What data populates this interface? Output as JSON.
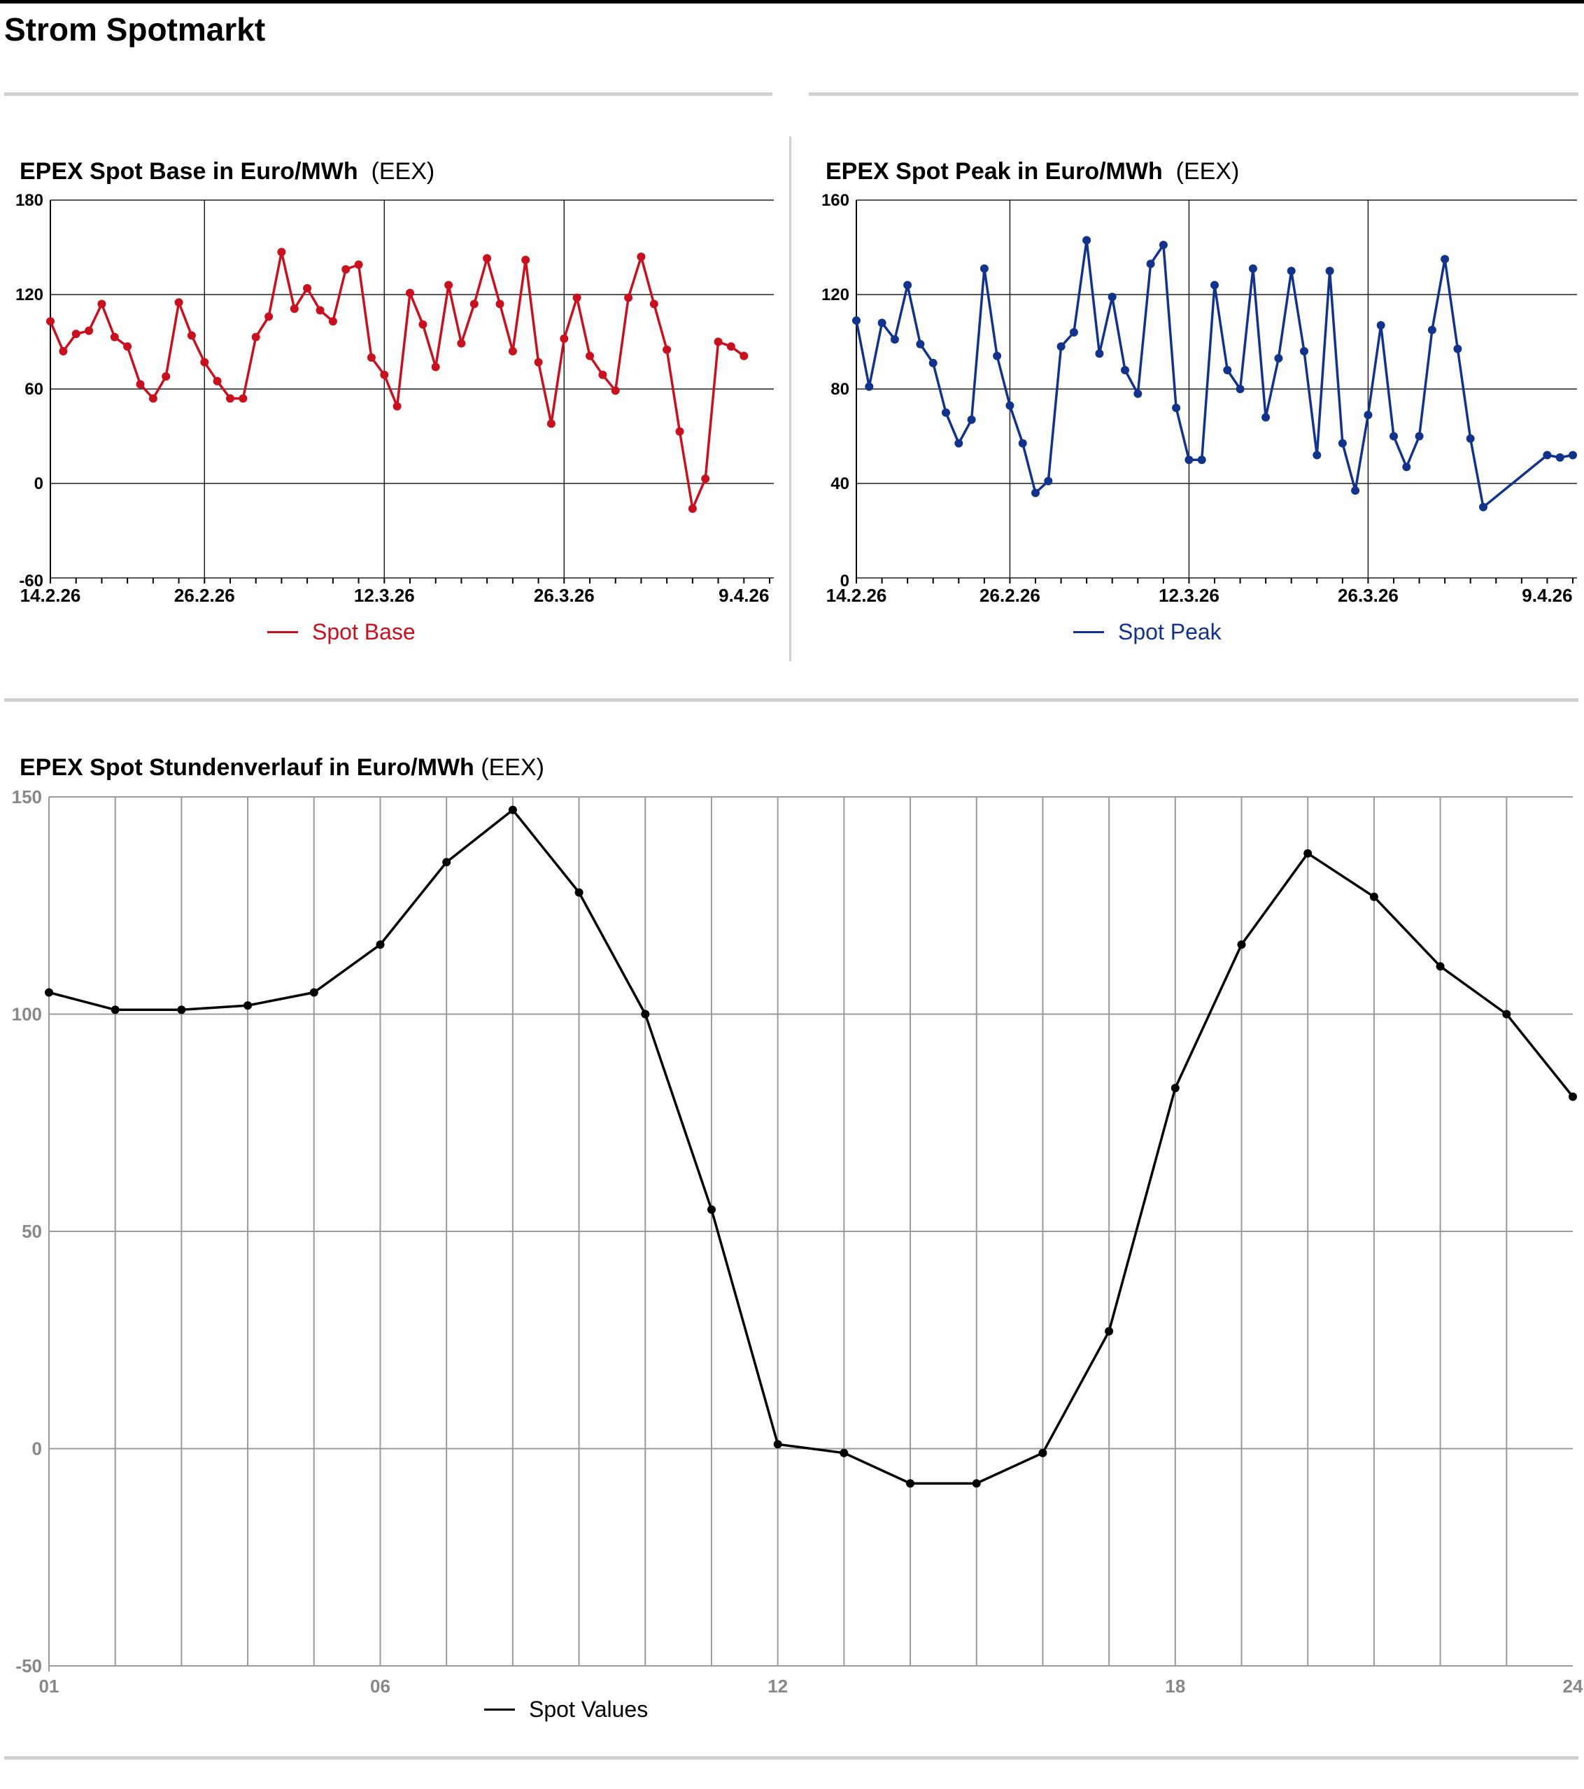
{
  "page": {
    "title": "Strom Spotmarkt"
  },
  "charts": {
    "base": {
      "title": "EPEX Spot Base in Euro/MWh",
      "source": "(EEX)",
      "legend": "Spot Base",
      "color": "#c8101e"
    },
    "peak": {
      "title": "EPEX Spot Peak in Euro/MWh",
      "source": "(EEX)",
      "legend": "Spot Peak",
      "color": "#12338c"
    },
    "hourly": {
      "title": "EPEX Spot Stundenverlauf in Euro/MWh",
      "source": "(EEX)",
      "legend": "Spot Values",
      "color": "#000000"
    }
  },
  "chart_data": [
    {
      "type": "line",
      "title": "EPEX Spot Base in Euro/MWh",
      "subtitle": "(EEX)",
      "ylim": [
        -60,
        180
      ],
      "yticks": [
        -60,
        0,
        60,
        120,
        180
      ],
      "xlim": [
        "14.2.26",
        "11.4.26"
      ],
      "xticks": [
        "14.2.26",
        "26.2.26",
        "12.3.26",
        "26.3.26",
        "9.4.26"
      ],
      "grid": true,
      "legend_position": "bottom-center",
      "series": [
        {
          "name": "Spot Base",
          "x": [
            "14.2.26",
            "15.2.26",
            "16.2.26",
            "17.2.26",
            "18.2.26",
            "19.2.26",
            "20.2.26",
            "21.2.26",
            "22.2.26",
            "23.2.26",
            "24.2.26",
            "25.2.26",
            "26.2.26",
            "27.2.26",
            "28.2.26",
            "1.3.26",
            "2.3.26",
            "3.3.26",
            "4.3.26",
            "5.3.26",
            "6.3.26",
            "7.3.26",
            "8.3.26",
            "9.3.26",
            "10.3.26",
            "11.3.26",
            "12.3.26",
            "13.3.26",
            "14.3.26",
            "15.3.26",
            "16.3.26",
            "17.3.26",
            "18.3.26",
            "19.3.26",
            "20.3.26",
            "21.3.26",
            "22.3.26",
            "23.3.26",
            "24.3.26",
            "25.3.26",
            "26.3.26",
            "27.3.26",
            "28.3.26",
            "29.3.26",
            "30.3.26",
            "31.3.26",
            "1.4.26",
            "2.4.26",
            "3.4.26",
            "4.4.26",
            "5.4.26",
            "6.4.26",
            "7.4.26",
            "8.4.26",
            "9.4.26",
            "10.4.26",
            "11.4.26"
          ],
          "values": [
            103,
            84,
            95,
            97,
            114,
            93,
            87,
            63,
            54,
            68,
            115,
            94,
            77,
            65,
            54,
            54,
            93,
            106,
            147,
            111,
            124,
            110,
            103,
            136,
            139,
            80,
            69,
            49,
            121,
            101,
            74,
            126,
            89,
            114,
            143,
            114,
            84,
            142,
            77,
            38,
            92,
            118,
            81,
            69,
            59,
            118,
            144,
            114,
            85,
            33,
            -16,
            3,
            90,
            87,
            81,
            null,
            null
          ]
        }
      ]
    },
    {
      "type": "line",
      "title": "EPEX Spot Peak in Euro/MWh",
      "subtitle": "(EEX)",
      "ylim": [
        0,
        160
      ],
      "yticks": [
        0,
        40,
        80,
        120,
        160
      ],
      "xlim": [
        "14.2.26",
        "11.4.26"
      ],
      "xticks": [
        "14.2.26",
        "26.2.26",
        "12.3.26",
        "26.3.26",
        "9.4.26"
      ],
      "grid": true,
      "legend_position": "bottom-center",
      "series": [
        {
          "name": "Spot Peak",
          "x": [
            "14.2.26",
            "15.2.26",
            "16.2.26",
            "17.2.26",
            "18.2.26",
            "19.2.26",
            "20.2.26",
            "21.2.26",
            "22.2.26",
            "23.2.26",
            "24.2.26",
            "25.2.26",
            "26.2.26",
            "27.2.26",
            "28.2.26",
            "1.3.26",
            "2.3.26",
            "3.3.26",
            "4.3.26",
            "5.3.26",
            "6.3.26",
            "7.3.26",
            "8.3.26",
            "9.3.26",
            "10.3.26",
            "11.3.26",
            "12.3.26",
            "13.3.26",
            "14.3.26",
            "15.3.26",
            "16.3.26",
            "17.3.26",
            "18.3.26",
            "19.3.26",
            "20.3.26",
            "21.3.26",
            "22.3.26",
            "23.3.26",
            "24.3.26",
            "25.3.26",
            "26.3.26",
            "27.3.26",
            "28.3.26",
            "29.3.26",
            "30.3.26",
            "31.3.26",
            "1.4.26",
            "2.4.26",
            "3.4.26",
            "4.4.26",
            "5.4.26",
            "6.4.26",
            "7.4.26",
            "8.4.26",
            "9.4.26",
            "10.4.26",
            "11.4.26"
          ],
          "values": [
            109,
            81,
            108,
            101,
            124,
            99,
            91,
            70,
            57,
            67,
            131,
            94,
            73,
            57,
            36,
            41,
            98,
            104,
            143,
            95,
            119,
            88,
            78,
            133,
            141,
            72,
            50,
            50,
            124,
            88,
            80,
            131,
            68,
            93,
            130,
            96,
            52,
            130,
            57,
            37,
            69,
            107,
            60,
            47,
            60,
            105,
            135,
            97,
            59,
            30,
            null,
            null,
            null,
            null,
            52,
            51,
            52
          ]
        }
      ]
    },
    {
      "type": "line",
      "title": "EPEX Spot Stundenverlauf in Euro/MWh",
      "subtitle": "(EEX)",
      "ylim": [
        -50,
        150
      ],
      "yticks": [
        -50,
        0,
        50,
        100,
        150
      ],
      "xlim": [
        1,
        24
      ],
      "xticks": [
        "01",
        "06",
        "12",
        "18",
        "24"
      ],
      "grid": true,
      "legend_position": "bottom-center",
      "series": [
        {
          "name": "Spot Values",
          "x": [
            1,
            2,
            3,
            4,
            5,
            6,
            7,
            8,
            9,
            10,
            11,
            12,
            13,
            14,
            15,
            16,
            17,
            18,
            19,
            20,
            21,
            22,
            23,
            24
          ],
          "values": [
            105,
            101,
            101,
            102,
            105,
            116,
            135,
            147,
            128,
            100,
            55,
            1,
            -1,
            -8,
            -8,
            -1,
            27,
            83,
            116,
            137,
            127,
            111,
            100,
            81
          ]
        }
      ]
    }
  ]
}
